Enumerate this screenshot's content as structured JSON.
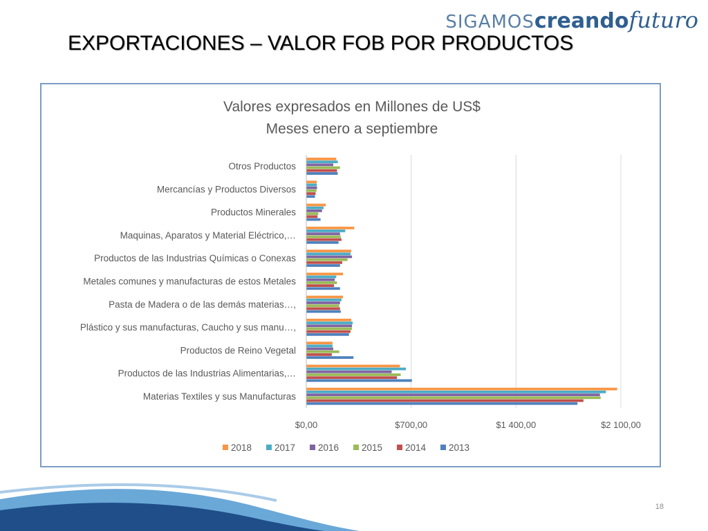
{
  "logo": {
    "pre": "SIGAMOS",
    "mid": "creando",
    "post": "futuro"
  },
  "slide_title": "EXPORTACIONES – VALOR FOB POR PRODUCTOS",
  "page_number": "18",
  "colors": {
    "series": [
      "#F79646",
      "#4BACC6",
      "#8064A2",
      "#9BBB59",
      "#C0504D",
      "#4F81BD"
    ],
    "gridline": "#D9D9D9",
    "text": "#595959",
    "frame": "#7a9cc6"
  },
  "chart_data": {
    "type": "bar",
    "orientation": "horizontal",
    "title": "Valores expresados en Millones de US$",
    "subtitle": "Meses enero a septiembre",
    "xlabel": "",
    "ylabel": "",
    "xlim": [
      0,
      2100
    ],
    "xticks": [
      0,
      700,
      1400,
      2100
    ],
    "xtick_labels": [
      "$0,00",
      "$700,00",
      "$1 400,00",
      "$2 100,00"
    ],
    "grid": true,
    "legend_position": "bottom",
    "categories": [
      "Otros Productos",
      "Mercancías y Productos Diversos",
      "Productos Minerales",
      "Maquinas, Aparatos y Material Eléctrico,…",
      "Productos de las Industrias Químicas o Conexas",
      "Metales comunes y manufacturas de estos Metales",
      "Pasta de Madera o de las demás materias…,",
      "Plástico y sus manufacturas, Caucho y sus manu…,",
      "Productos de Reino Vegetal",
      "Productos de las Industrias Alimentarias,…",
      "Materias Textiles y sus Manufacturas"
    ],
    "series": [
      {
        "name": "2018",
        "values": [
          200,
          70,
          130,
          320,
          300,
          245,
          245,
          300,
          175,
          625,
          2075
        ]
      },
      {
        "name": "2017",
        "values": [
          210,
          70,
          115,
          260,
          295,
          200,
          235,
          310,
          175,
          665,
          2000
        ]
      },
      {
        "name": "2016",
        "values": [
          180,
          72,
          105,
          225,
          305,
          190,
          225,
          305,
          180,
          570,
          1960
        ]
      },
      {
        "name": "2015",
        "values": [
          225,
          68,
          80,
          230,
          275,
          205,
          220,
          305,
          220,
          630,
          1965
        ]
      },
      {
        "name": "2014",
        "values": [
          205,
          62,
          75,
          235,
          240,
          185,
          225,
          295,
          170,
          605,
          1850
        ]
      },
      {
        "name": "2013",
        "values": [
          210,
          58,
          95,
          215,
          225,
          225,
          230,
          285,
          315,
          705,
          1810
        ]
      }
    ]
  }
}
